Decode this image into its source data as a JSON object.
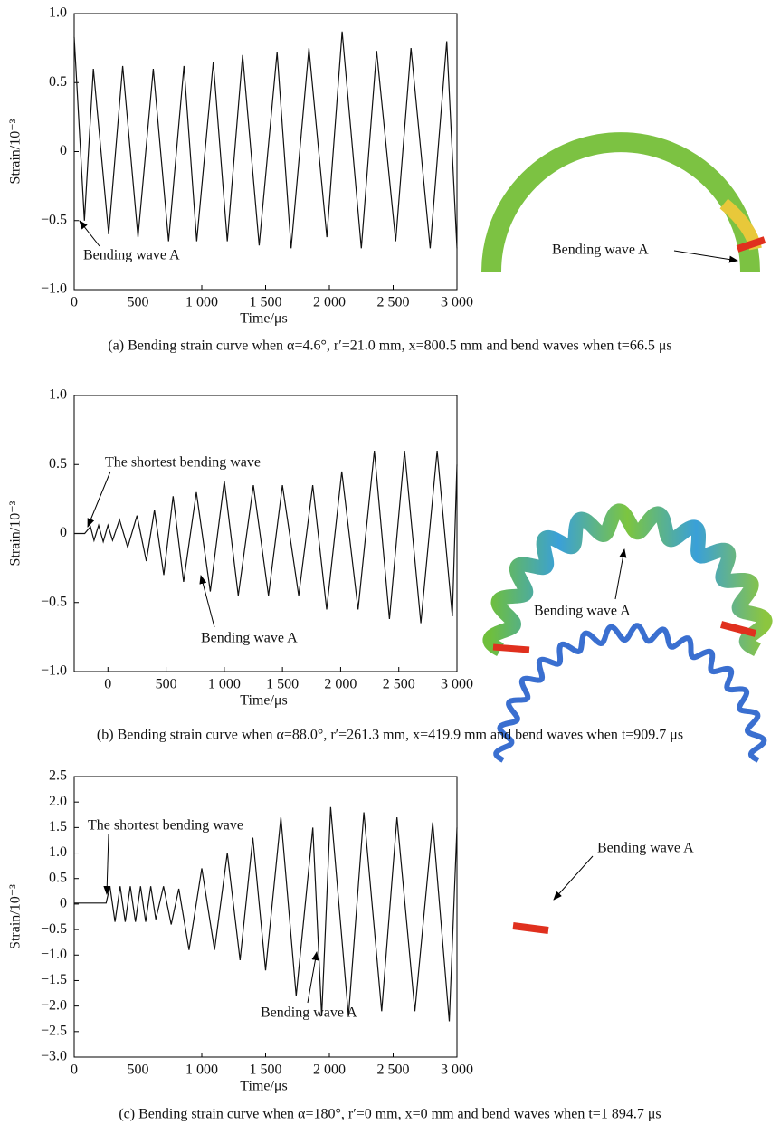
{
  "chart_data": [
    {
      "type": "line",
      "xlabel": "Time/μs",
      "ylabel": "Strain/10⁻³",
      "caption": "(a) Bending strain curve when α=4.6°, r′=21.0 mm, x=800.5 mm and bend waves when t=66.5 μs",
      "annotations": [
        "Bending wave A"
      ],
      "image_label": "Bending wave A",
      "xlim": [
        0,
        3000
      ],
      "ylim": [
        -1,
        1
      ],
      "xticks": [
        0,
        500,
        {
          "value": 1000,
          "label": "1 000"
        },
        {
          "value": 1500,
          "label": "1 500"
        },
        {
          "value": 2000,
          "label": "2 000"
        },
        {
          "value": 2500,
          "label": "2 500"
        },
        {
          "value": 3000,
          "label": "3 000"
        }
      ],
      "yticks": [
        {
          "value": -1,
          "label": "−1.0"
        },
        {
          "value": -0.5,
          "label": "−0.5"
        },
        0,
        0.5,
        {
          "value": 1,
          "label": "1.0"
        }
      ],
      "color": "#111111",
      "x": [
        0,
        80,
        150,
        270,
        380,
        500,
        620,
        740,
        860,
        960,
        1090,
        1200,
        1320,
        1450,
        1590,
        1700,
        1840,
        1980,
        2100,
        2250,
        2370,
        2520,
        2640,
        2790,
        2920,
        3000
      ],
      "values": [
        0.83,
        -0.5,
        0.6,
        -0.6,
        0.62,
        -0.62,
        0.6,
        -0.65,
        0.62,
        -0.65,
        0.65,
        -0.65,
        0.7,
        -0.68,
        0.72,
        -0.7,
        0.75,
        -0.62,
        0.87,
        -0.7,
        0.73,
        -0.65,
        0.75,
        -0.7,
        0.8,
        -0.7
      ]
    },
    {
      "type": "line",
      "xlabel": "Time/μs",
      "ylabel": "Strain/10⁻³",
      "caption": "(b) Bending strain curve when α=88.0°, r′=261.3 mm, x=419.9 mm and bend waves when t=909.7 μs",
      "annotations": [
        "The shortest bending wave",
        "Bending wave A"
      ],
      "image_label": "Bending wave A",
      "xlim": [
        -290,
        3000
      ],
      "ylim": [
        -1,
        1
      ],
      "xticks": [
        0,
        500,
        {
          "value": 1000,
          "label": "1 000"
        },
        {
          "value": 1500,
          "label": "1 500"
        },
        {
          "value": 2000,
          "label": "2 000"
        },
        {
          "value": 2500,
          "label": "2 500"
        },
        {
          "value": 3000,
          "label": "3 000"
        }
      ],
      "yticks": [
        {
          "value": -1,
          "label": "−1.0"
        },
        {
          "value": -0.5,
          "label": "−0.5"
        },
        0,
        0.5,
        {
          "value": 1,
          "label": "1.0"
        }
      ],
      "color": "#111111",
      "x": [
        -290,
        -200,
        -150,
        -120,
        -80,
        -40,
        0,
        40,
        100,
        170,
        250,
        330,
        400,
        480,
        560,
        650,
        760,
        880,
        1000,
        1120,
        1250,
        1380,
        1500,
        1640,
        1760,
        1880,
        2010,
        2150,
        2290,
        2420,
        2550,
        2690,
        2830,
        2960,
        3000
      ],
      "values": [
        0,
        0,
        0.05,
        -0.05,
        0.06,
        -0.06,
        0.06,
        -0.05,
        0.1,
        -0.1,
        0.13,
        -0.2,
        0.17,
        -0.3,
        0.27,
        -0.35,
        0.3,
        -0.42,
        0.38,
        -0.45,
        0.35,
        -0.45,
        0.35,
        -0.45,
        0.35,
        -0.55,
        0.45,
        -0.55,
        0.6,
        -0.62,
        0.6,
        -0.65,
        0.6,
        -0.6,
        0.5
      ]
    },
    {
      "type": "line",
      "xlabel": "Time/μs",
      "ylabel": "Strain/10⁻³",
      "caption": "(c) Bending strain curve when α=180°, r′=0 mm, x=0 mm and bend waves when t=1 894.7 μs",
      "annotations": [
        "The shortest bending wave",
        "Bending wave A"
      ],
      "image_label": "Bending wave A",
      "xlim": [
        0,
        3000
      ],
      "ylim": [
        -3,
        2.5
      ],
      "xticks": [
        0,
        500,
        {
          "value": 1000,
          "label": "1 000"
        },
        {
          "value": 1500,
          "label": "1 500"
        },
        {
          "value": 2000,
          "label": "2 000"
        },
        {
          "value": 2500,
          "label": "2 500"
        },
        {
          "value": 3000,
          "label": "3 000"
        }
      ],
      "yticks": [
        {
          "value": -3,
          "label": "−3.0"
        },
        {
          "value": -2.5,
          "label": "−2.5"
        },
        {
          "value": -2,
          "label": "−2.0"
        },
        {
          "value": -1.5,
          "label": "−1.5"
        },
        {
          "value": -1,
          "label": "−1.0"
        },
        {
          "value": -0.5,
          "label": "−0.5"
        },
        0,
        0.5,
        {
          "value": 1,
          "label": "1.0"
        },
        1.5,
        {
          "value": 2,
          "label": "2.0"
        },
        2.5
      ],
      "color": "#111111",
      "x": [
        0,
        250,
        280,
        320,
        360,
        400,
        440,
        480,
        520,
        560,
        600,
        640,
        700,
        760,
        820,
        900,
        1000,
        1100,
        1200,
        1300,
        1400,
        1500,
        1620,
        1740,
        1870,
        1940,
        2010,
        2150,
        2270,
        2410,
        2530,
        2670,
        2810,
        2940,
        3000
      ],
      "values": [
        0.02,
        0.02,
        0.35,
        -0.35,
        0.35,
        -0.35,
        0.35,
        -0.35,
        0.35,
        -0.35,
        0.35,
        -0.3,
        0.35,
        -0.4,
        0.3,
        -0.9,
        0.7,
        -0.9,
        1.0,
        -1.1,
        1.3,
        -1.3,
        1.7,
        -1.8,
        1.5,
        -2.2,
        1.9,
        -2.2,
        1.8,
        -2.1,
        1.7,
        -2.1,
        1.6,
        -2.3,
        1.5
      ]
    }
  ]
}
